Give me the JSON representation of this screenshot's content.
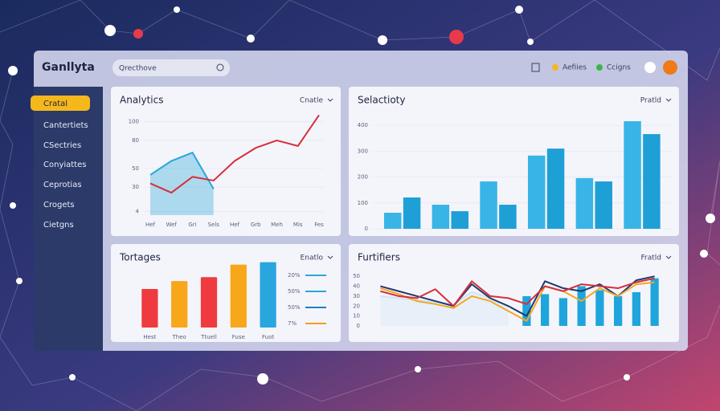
{
  "header": {
    "brand": "Ganllyta",
    "search": "Qrecthove",
    "actions": [
      "Aefiies",
      "Ccigns"
    ]
  },
  "sidebar": {
    "items": [
      "Cratal",
      "Cantertiets",
      "CSectries",
      "Conyiattes",
      "Ceprotias",
      "Crogets",
      "Cietgns"
    ]
  },
  "chart_data": [
    {
      "type": "line",
      "title": "Analytics",
      "menu": "Cnatle",
      "categories": [
        "Hef",
        "Wef",
        "Gri",
        "Sels",
        "Hef",
        "Grb",
        "Meh",
        "Mis",
        "Fes"
      ],
      "ylim": [
        0,
        110
      ],
      "yticks": [
        4,
        30,
        50,
        80,
        100
      ],
      "grid": true,
      "series": [
        {
          "color": "#27a7d8",
          "area": true,
          "values": [
            43,
            58,
            67,
            28,
            null,
            null,
            null,
            null,
            null
          ]
        },
        {
          "color": "#d62f3a",
          "values": [
            34,
            24,
            41,
            37,
            58,
            72,
            80,
            74,
            107
          ]
        }
      ]
    },
    {
      "type": "bar",
      "title": "Selactioty",
      "menu": "Pratld",
      "categories": [
        null,
        null,
        null,
        null,
        null,
        null
      ],
      "ylim": [
        0,
        450
      ],
      "yticks": [
        0,
        100,
        200,
        300,
        400
      ],
      "grid": true,
      "series": [
        {
          "color": "#39b4e6",
          "values": [
            62,
            93,
            183,
            283,
            196,
            416
          ]
        },
        {
          "color": "#1e9fd6",
          "values": [
            121,
            68,
            93,
            310,
            183,
            366
          ]
        }
      ]
    },
    {
      "type": "bar",
      "title": "Tortages",
      "menu": "Enatlo",
      "categories": [
        "Hest",
        "Theo",
        "Ttuell",
        "Fuse",
        "Fuot"
      ],
      "ylim": [
        0,
        100
      ],
      "grid": false,
      "values": [
        49,
        59,
        64,
        80,
        83
      ],
      "colors": [
        "#ef3b3f",
        "#f8a61a",
        "#ef3b3f",
        "#f8a61a",
        "#2aa6df"
      ],
      "legend": [
        {
          "label": "20%",
          "color": "#2aa6df"
        },
        {
          "label": "50%",
          "color": "#2aa6df"
        },
        {
          "label": "50%",
          "color": "#1f7fc4"
        },
        {
          "label": "7%",
          "color": "#f39c23"
        }
      ]
    },
    {
      "type": "combo",
      "title": "Furtifiers",
      "menu": "Fratld",
      "categories": [
        null,
        null,
        null,
        null,
        null,
        null,
        null,
        null,
        null,
        null,
        null,
        null,
        null,
        null,
        null,
        null
      ],
      "ylim": [
        0,
        55
      ],
      "yticks": [
        0,
        10,
        20,
        30,
        40,
        50
      ],
      "grid": false,
      "series": [
        {
          "color": "#cfe5f5",
          "area": true,
          "values": [
            30,
            28,
            26,
            24,
            22,
            34,
            28,
            20,
            null,
            null,
            null,
            null,
            null,
            null,
            null,
            null
          ]
        },
        {
          "color": "#1fa5dc",
          "kind": "bar",
          "values": [
            null,
            null,
            null,
            null,
            null,
            null,
            null,
            null,
            30,
            32,
            28,
            40,
            36,
            30,
            34,
            48
          ]
        },
        {
          "color": "#1d3b6e",
          "values": [
            40,
            35,
            30,
            25,
            20,
            42,
            28,
            20,
            10,
            45,
            38,
            35,
            42,
            30,
            46,
            50
          ]
        },
        {
          "color": "#f5a623",
          "values": [
            38,
            32,
            25,
            22,
            18,
            30,
            25,
            15,
            5,
            40,
            35,
            25,
            38,
            30,
            42,
            44
          ]
        },
        {
          "color": "#d62f3a",
          "values": [
            35,
            30,
            28,
            37,
            20,
            45,
            30,
            28,
            22,
            40,
            35,
            42,
            40,
            38,
            44,
            48
          ]
        }
      ]
    }
  ]
}
